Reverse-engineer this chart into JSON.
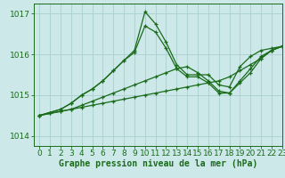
{
  "title": "Graphe pression niveau de la mer (hPa)",
  "bg_color": "#cce8e8",
  "grid_color": "#aad0d0",
  "line_color": "#1a6b1a",
  "xlim": [
    -0.5,
    23
  ],
  "ylim": [
    1013.75,
    1017.25
  ],
  "yticks": [
    1014,
    1015,
    1016,
    1017
  ],
  "xticks": [
    0,
    1,
    2,
    3,
    4,
    5,
    6,
    7,
    8,
    9,
    10,
    11,
    12,
    13,
    14,
    15,
    16,
    17,
    18,
    19,
    20,
    21,
    22,
    23
  ],
  "series1_x": [
    0,
    1,
    2,
    3,
    4,
    5,
    6,
    7,
    8,
    9,
    10,
    11,
    12,
    13,
    14,
    15,
    16,
    17,
    18,
    19,
    20,
    21,
    22,
    23
  ],
  "series1_y": [
    1014.5,
    1014.55,
    1014.6,
    1014.65,
    1014.7,
    1014.75,
    1014.8,
    1014.85,
    1014.9,
    1014.95,
    1015.0,
    1015.05,
    1015.1,
    1015.15,
    1015.2,
    1015.25,
    1015.3,
    1015.35,
    1015.45,
    1015.6,
    1015.75,
    1015.9,
    1016.1,
    1016.2
  ],
  "series2_x": [
    0,
    1,
    2,
    3,
    4,
    5,
    6,
    7,
    8,
    9,
    10,
    11,
    12,
    13,
    14,
    15,
    16,
    17,
    18,
    19,
    20,
    21,
    22,
    23
  ],
  "series2_y": [
    1014.5,
    1014.55,
    1014.6,
    1014.65,
    1014.75,
    1014.85,
    1014.95,
    1015.05,
    1015.15,
    1015.25,
    1015.35,
    1015.45,
    1015.55,
    1015.65,
    1015.7,
    1015.55,
    1015.35,
    1015.1,
    1015.05,
    1015.35,
    1015.65,
    1015.95,
    1016.1,
    1016.2
  ],
  "series3_x": [
    0,
    2,
    3,
    4,
    5,
    6,
    7,
    8,
    9,
    10,
    11,
    12,
    13,
    14,
    15,
    16,
    17,
    18,
    19,
    20,
    21,
    22,
    23
  ],
  "series3_y": [
    1014.5,
    1014.65,
    1014.8,
    1015.0,
    1015.15,
    1015.35,
    1015.6,
    1015.85,
    1016.1,
    1017.05,
    1016.75,
    1016.3,
    1015.75,
    1015.5,
    1015.5,
    1015.5,
    1015.25,
    1015.2,
    1015.7,
    1015.95,
    1016.1,
    1016.15,
    1016.2
  ],
  "series4_x": [
    0,
    2,
    3,
    4,
    5,
    6,
    7,
    8,
    9,
    10,
    11,
    12,
    13,
    14,
    15,
    16,
    17,
    18,
    19,
    20,
    21,
    22,
    23
  ],
  "series4_y": [
    1014.5,
    1014.65,
    1014.8,
    1015.0,
    1015.15,
    1015.35,
    1015.6,
    1015.85,
    1016.05,
    1016.7,
    1016.55,
    1016.15,
    1015.65,
    1015.45,
    1015.45,
    1015.3,
    1015.05,
    1015.05,
    1015.3,
    1015.55,
    1015.9,
    1016.1,
    1016.2
  ],
  "tick_fontsize": 6.5,
  "title_fontsize": 7
}
